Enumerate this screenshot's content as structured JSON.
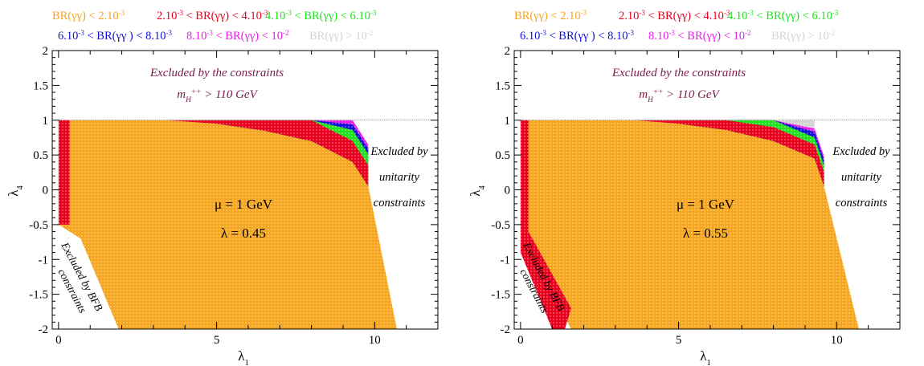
{
  "legend": {
    "row1": [
      {
        "text": "BR(γγ) < 2.10",
        "exp": "-3",
        "color": "#f5a51e"
      },
      {
        "text": "2.10",
        "exp": "-3",
        "text2": " < BR(γγ) < 4.10",
        "exp2": "-3",
        "color": "#e8001c"
      },
      {
        "text": "4.10",
        "exp": "-3",
        "text2": " < BR(γγ) < 6.10",
        "exp2": "-3",
        "color": "#22e022"
      }
    ],
    "row2": [
      {
        "text": "6.10",
        "exp": "-3",
        "text2": " < BR(γγ ) < 8.10",
        "exp2": "-3",
        "color": "#1010d8"
      },
      {
        "text": "8.10",
        "exp": "-3",
        "text2": " < BR(γγ) < 10",
        "exp2": "-2",
        "color": "#e61ee6"
      },
      {
        "text": "BR(γγ) > 10",
        "exp": "-2",
        "color": "#d4d4d4"
      }
    ]
  },
  "colors": {
    "orange": "#f5a51e",
    "red": "#e8001c",
    "green": "#22e022",
    "blue": "#1010d8",
    "magenta": "#e61ee6",
    "gray": "#d4d4d4",
    "purple_text": "#7a1a4a"
  },
  "panels": [
    {
      "chart_data": {
        "type": "scatter",
        "xlabel": "λ1",
        "ylabel": "λ4",
        "xlim": [
          -0.2,
          12
        ],
        "ylim": [
          -2,
          2
        ],
        "xticks": [
          "0",
          "5",
          "10"
        ],
        "yticks": [
          "-2",
          "-1.5",
          "-1",
          "-0.5",
          "0",
          "0.5",
          "1",
          "1.5",
          "2"
        ],
        "boundary": {
          "top_y": 1,
          "left_edge": [
            [
              0,
              1
            ],
            [
              0,
              -0.5
            ],
            [
              0.7,
              -0.7
            ],
            [
              1.9,
              -2
            ]
          ],
          "right_edge": [
            [
              9.8,
              0.05
            ],
            [
              10.7,
              -2
            ]
          ],
          "upper_curve": [
            [
              3.4,
              1
            ],
            [
              5,
              0.95
            ],
            [
              6.5,
              0.85
            ],
            [
              8,
              0.7
            ],
            [
              9.3,
              0.4
            ],
            [
              9.8,
              0.05
            ]
          ],
          "bands": [
            {
              "color": "red",
              "offset": 0.3,
              "start_x": 3.4
            },
            {
              "color": "green",
              "offset": 0.16,
              "start_x": 4.0
            },
            {
              "color": "blue",
              "offset": 0.08,
              "start_x": 4.5
            },
            {
              "color": "magenta",
              "offset": 0.06,
              "start_x": 5.0
            }
          ],
          "gray_region": [
            [
              6.7,
              1
            ],
            [
              9.3,
              1
            ],
            [
              9.3,
              0.58
            ],
            [
              6.7,
              0.9
            ]
          ],
          "red_left_strip": [
            [
              0,
              1
            ],
            [
              0.35,
              1
            ],
            [
              0.35,
              -0.5
            ],
            [
              0,
              -0.5
            ]
          ]
        },
        "annotations": {
          "excluded_constraints": "Excluded by the constraints",
          "mass_prefix": "m",
          "mass_sub": "H",
          "mass_sup": "++",
          "mass_suffix": " > 110 GeV",
          "excluded_unitarity_1": "Excluded by",
          "excluded_unitarity_2": "unitarity",
          "excluded_unitarity_3": "constraints",
          "mu": "μ = 1 GeV",
          "lambda": "λ = 0.45",
          "bfb_1": "Excluded by BFB",
          "bfb_2": "constraints"
        }
      }
    },
    {
      "chart_data": {
        "type": "scatter",
        "xlabel": "λ1",
        "ylabel": "λ4",
        "xlim": [
          -0.2,
          12
        ],
        "ylim": [
          -2,
          2
        ],
        "xticks": [
          "0",
          "5",
          "10"
        ],
        "yticks": [
          "-2",
          "-1.5",
          "-1",
          "-0.5",
          "0",
          "0.5",
          "1",
          "1.5",
          "2"
        ],
        "boundary": {
          "top_y": 1,
          "left_edge": [
            [
              0,
              1
            ],
            [
              0,
              -0.6
            ],
            [
              1.6,
              -2
            ]
          ],
          "right_edge": [
            [
              9.6,
              0.05
            ],
            [
              10.7,
              -2
            ]
          ],
          "upper_curve": [
            [
              3.6,
              1
            ],
            [
              5,
              0.95
            ],
            [
              6.5,
              0.86
            ],
            [
              8,
              0.7
            ],
            [
              9.3,
              0.45
            ],
            [
              9.6,
              0.05
            ]
          ],
          "bands": [
            {
              "color": "red",
              "offset": 0.2,
              "start_x": 3.6
            },
            {
              "color": "green",
              "offset": 0.1,
              "start_x": 4.0
            },
            {
              "color": "blue",
              "offset": 0.08,
              "start_x": 4.8
            },
            {
              "color": "magenta",
              "offset": 0.05,
              "start_x": 5.3
            }
          ],
          "gray_region": [
            [
              6.7,
              1
            ],
            [
              9.3,
              1
            ],
            [
              9.3,
              0.6
            ],
            [
              6.7,
              0.9
            ]
          ],
          "red_left_strip": [
            [
              0,
              1
            ],
            [
              0.25,
              1
            ],
            [
              0.25,
              -0.6
            ],
            [
              0,
              -0.6
            ]
          ],
          "red_left_diag": [
            [
              0,
              -0.6
            ],
            [
              0.25,
              -0.6
            ],
            [
              1.6,
              -1.7
            ],
            [
              1.4,
              -2
            ],
            [
              1.0,
              -2
            ],
            [
              0,
              -0.9
            ]
          ]
        },
        "annotations": {
          "excluded_constraints": "Excluded by the constraints",
          "mass_prefix": "m",
          "mass_sub": "H",
          "mass_sup": "++",
          "mass_suffix": " > 110 GeV",
          "excluded_unitarity_1": "Excluded by",
          "excluded_unitarity_2": "unitarity",
          "excluded_unitarity_3": "constraints",
          "mu": "μ = 1 GeV",
          "lambda": "λ = 0.55",
          "bfb_1": "Excluded by BFB",
          "bfb_2": "constraints"
        }
      }
    }
  ]
}
